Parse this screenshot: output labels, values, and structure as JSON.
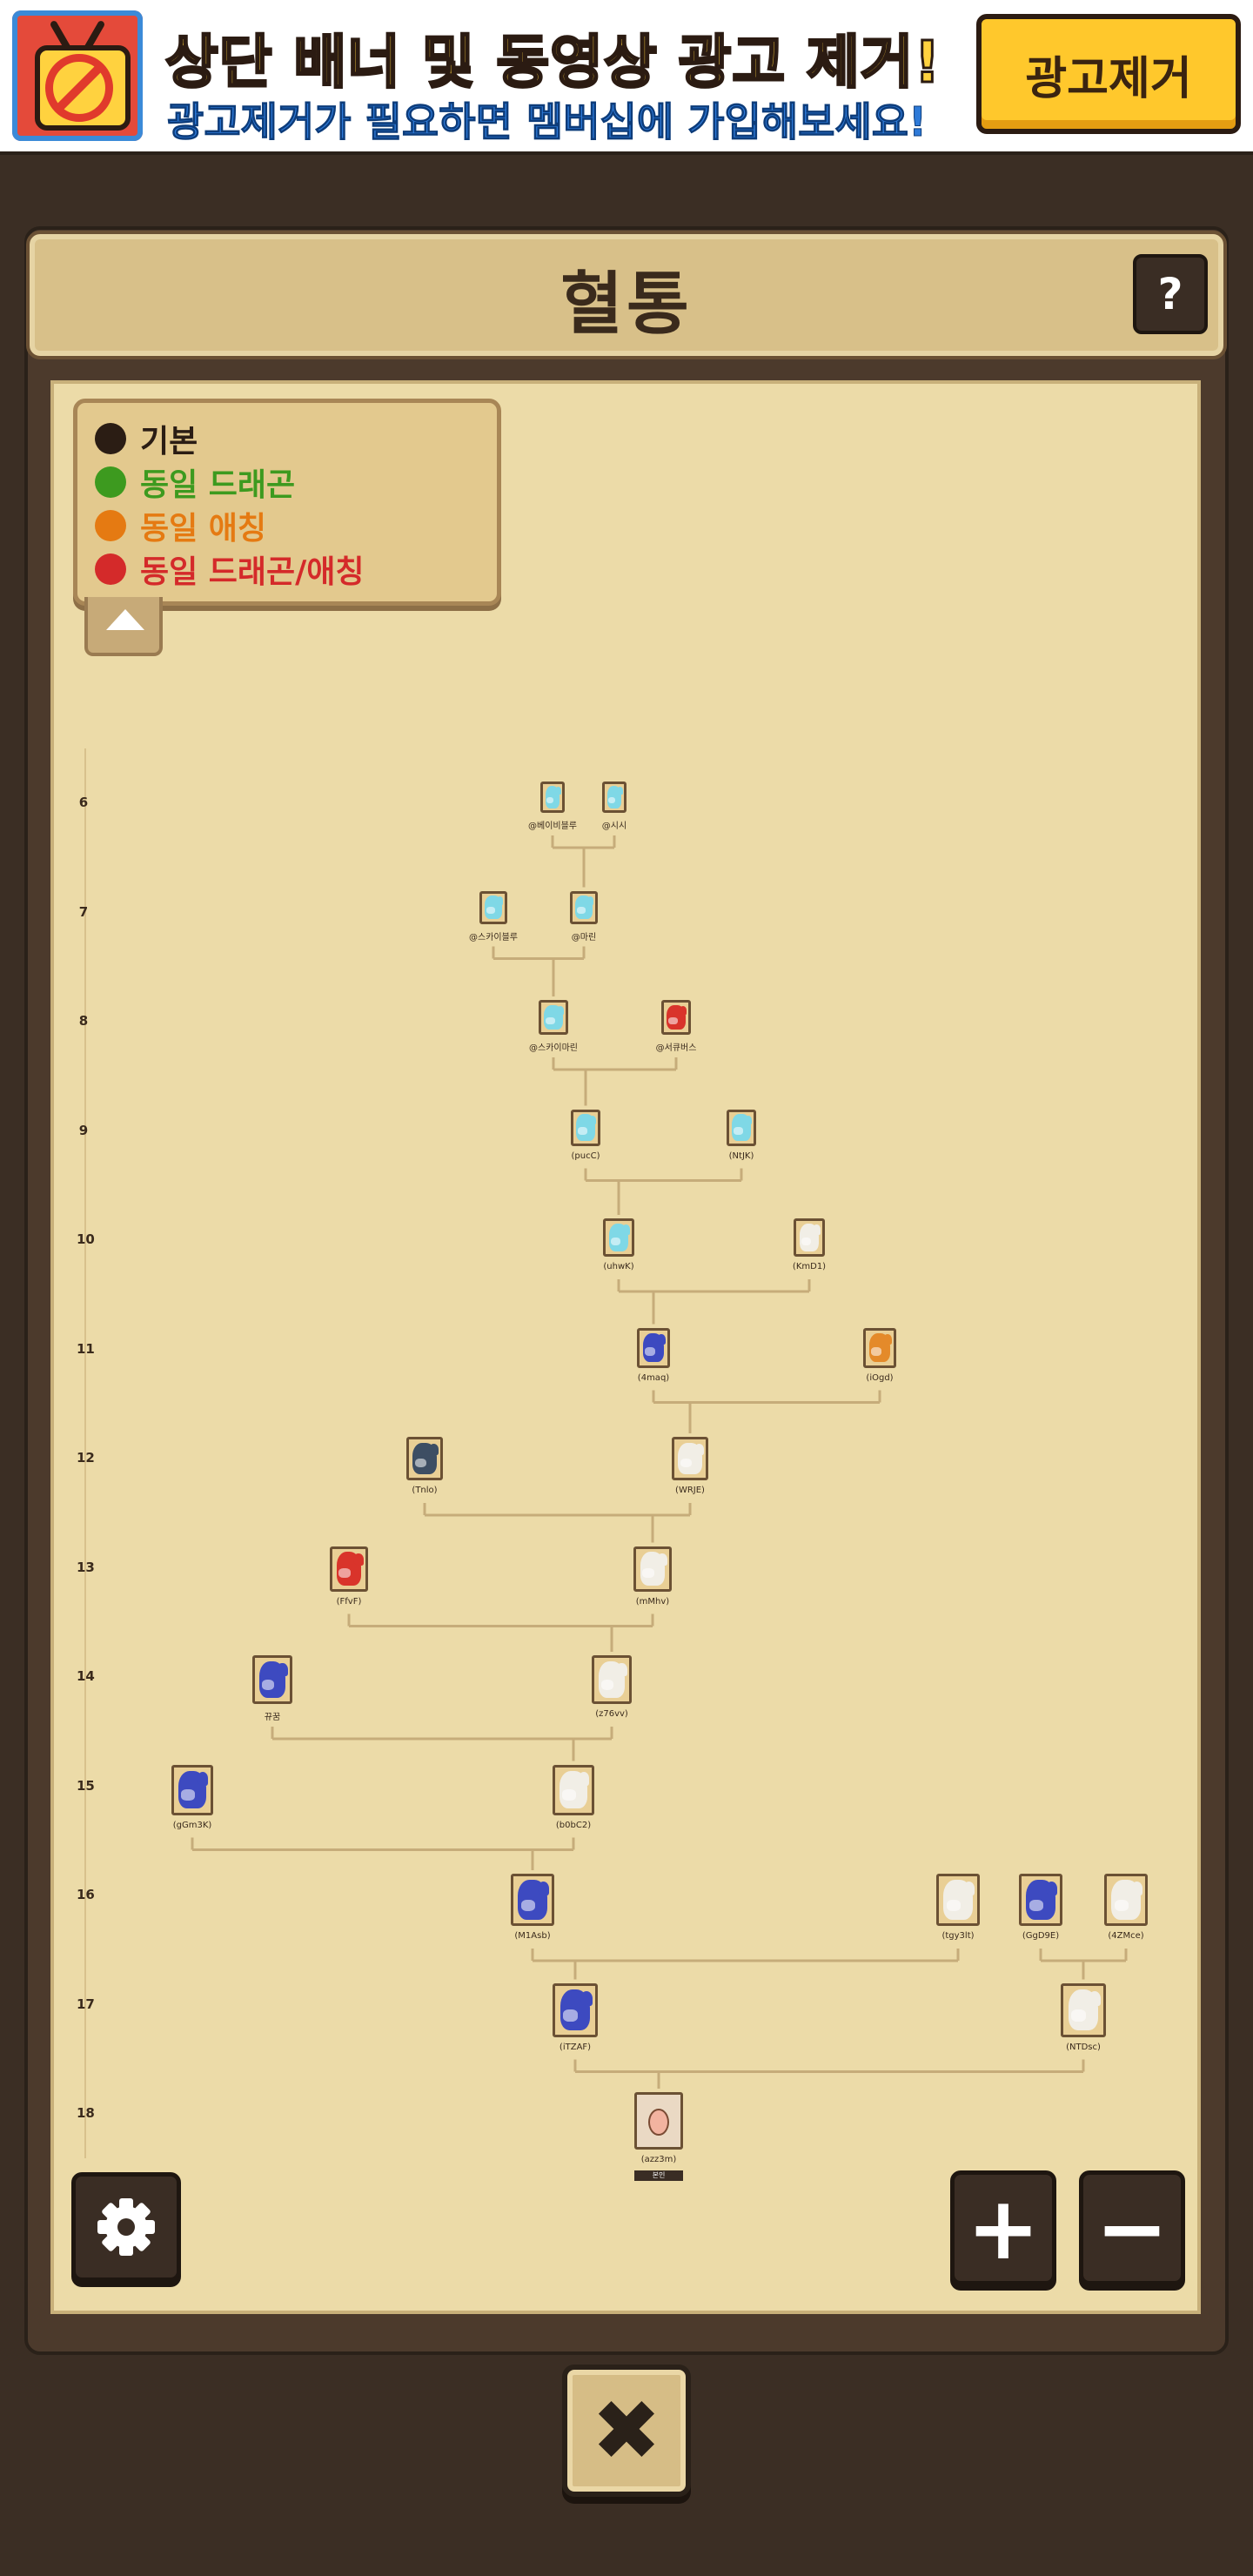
{
  "ad": {
    "title": "상단 배너 및 동영상 광고 제거!",
    "subtitle": "광고제거가 필요하면 멤버십에 가입해보세요!",
    "button_label": "광고제거"
  },
  "header": {
    "title": "혈통",
    "help_label": "?"
  },
  "legend": {
    "items": [
      {
        "label": "기본",
        "color": "#2b1d14"
      },
      {
        "label": "동일 드래곤",
        "color": "#3d9a1f"
      },
      {
        "label": "동일 애칭",
        "color": "#e57a12"
      },
      {
        "label": "동일 드래곤/애칭",
        "color": "#d42a2a"
      }
    ]
  },
  "tree": {
    "generations": [
      "6",
      "7",
      "8",
      "9",
      "10",
      "11",
      "12",
      "13",
      "14",
      "15",
      "16",
      "17",
      "18"
    ],
    "nodes": [
      {
        "id": "n6a",
        "gen": 6,
        "label": "@베이비블루",
        "type": "ice"
      },
      {
        "id": "n6b",
        "gen": 6,
        "label": "@시시",
        "type": "ice"
      },
      {
        "id": "n7a",
        "gen": 7,
        "label": "@스카이블루",
        "type": "ice"
      },
      {
        "id": "n7b",
        "gen": 7,
        "label": "@마린",
        "type": "ice"
      },
      {
        "id": "n8a",
        "gen": 8,
        "label": "@스카이마린",
        "type": "ice"
      },
      {
        "id": "n8b",
        "gen": 8,
        "label": "@서큐버스",
        "type": "fire"
      },
      {
        "id": "n9a",
        "gen": 9,
        "label": "(pucC)",
        "type": "ice"
      },
      {
        "id": "n9b",
        "gen": 9,
        "label": "(NtJK)",
        "type": "ice"
      },
      {
        "id": "n10a",
        "gen": 10,
        "label": "(uhwK)",
        "type": "ice"
      },
      {
        "id": "n10b",
        "gen": 10,
        "label": "(KmD1)",
        "type": "white"
      },
      {
        "id": "n11a",
        "gen": 11,
        "label": "(4maq)",
        "type": "blue"
      },
      {
        "id": "n11b",
        "gen": 11,
        "label": "(iOgd)",
        "type": "orange"
      },
      {
        "id": "n12a",
        "gen": 12,
        "label": "(Tnlo)",
        "type": "dark"
      },
      {
        "id": "n12b",
        "gen": 12,
        "label": "(WRJE)",
        "type": "white"
      },
      {
        "id": "n13a",
        "gen": 13,
        "label": "(FfvF)",
        "type": "fire"
      },
      {
        "id": "n13b",
        "gen": 13,
        "label": "(mMhv)",
        "type": "white"
      },
      {
        "id": "n14a",
        "gen": 14,
        "label": "뀨꿈",
        "type": "blue"
      },
      {
        "id": "n14b",
        "gen": 14,
        "label": "(z76vv)",
        "type": "white"
      },
      {
        "id": "n15a",
        "gen": 15,
        "label": "(gGm3K)",
        "type": "blue"
      },
      {
        "id": "n15b",
        "gen": 15,
        "label": "(b0bC2)",
        "type": "white"
      },
      {
        "id": "n16a",
        "gen": 16,
        "label": "(M1Asb)",
        "type": "blue"
      },
      {
        "id": "n16b",
        "gen": 16,
        "label": "(tgy3lt)",
        "type": "white"
      },
      {
        "id": "n16c",
        "gen": 16,
        "label": "(GgD9E)",
        "type": "blue"
      },
      {
        "id": "n16d",
        "gen": 16,
        "label": "(4ZMce)",
        "type": "white"
      },
      {
        "id": "n17a",
        "gen": 17,
        "label": "(iTZAF)",
        "type": "blue"
      },
      {
        "id": "n17b",
        "gen": 17,
        "label": "(NTDsc)",
        "type": "white"
      },
      {
        "id": "n18a",
        "gen": 18,
        "label": "(azz3m)",
        "type": "egg"
      }
    ],
    "self_badge": "본인"
  },
  "controls": {
    "zoom_in_label": "+",
    "zoom_out_label": "−",
    "close_label": "✖"
  },
  "colors": {
    "ice": "#7fd8e6",
    "fire": "#d9342b",
    "white": "#f1eee6",
    "blue": "#3d4ac0",
    "orange": "#e48a2a",
    "dark": "#3d4e63",
    "line": "#c6ac7a"
  }
}
